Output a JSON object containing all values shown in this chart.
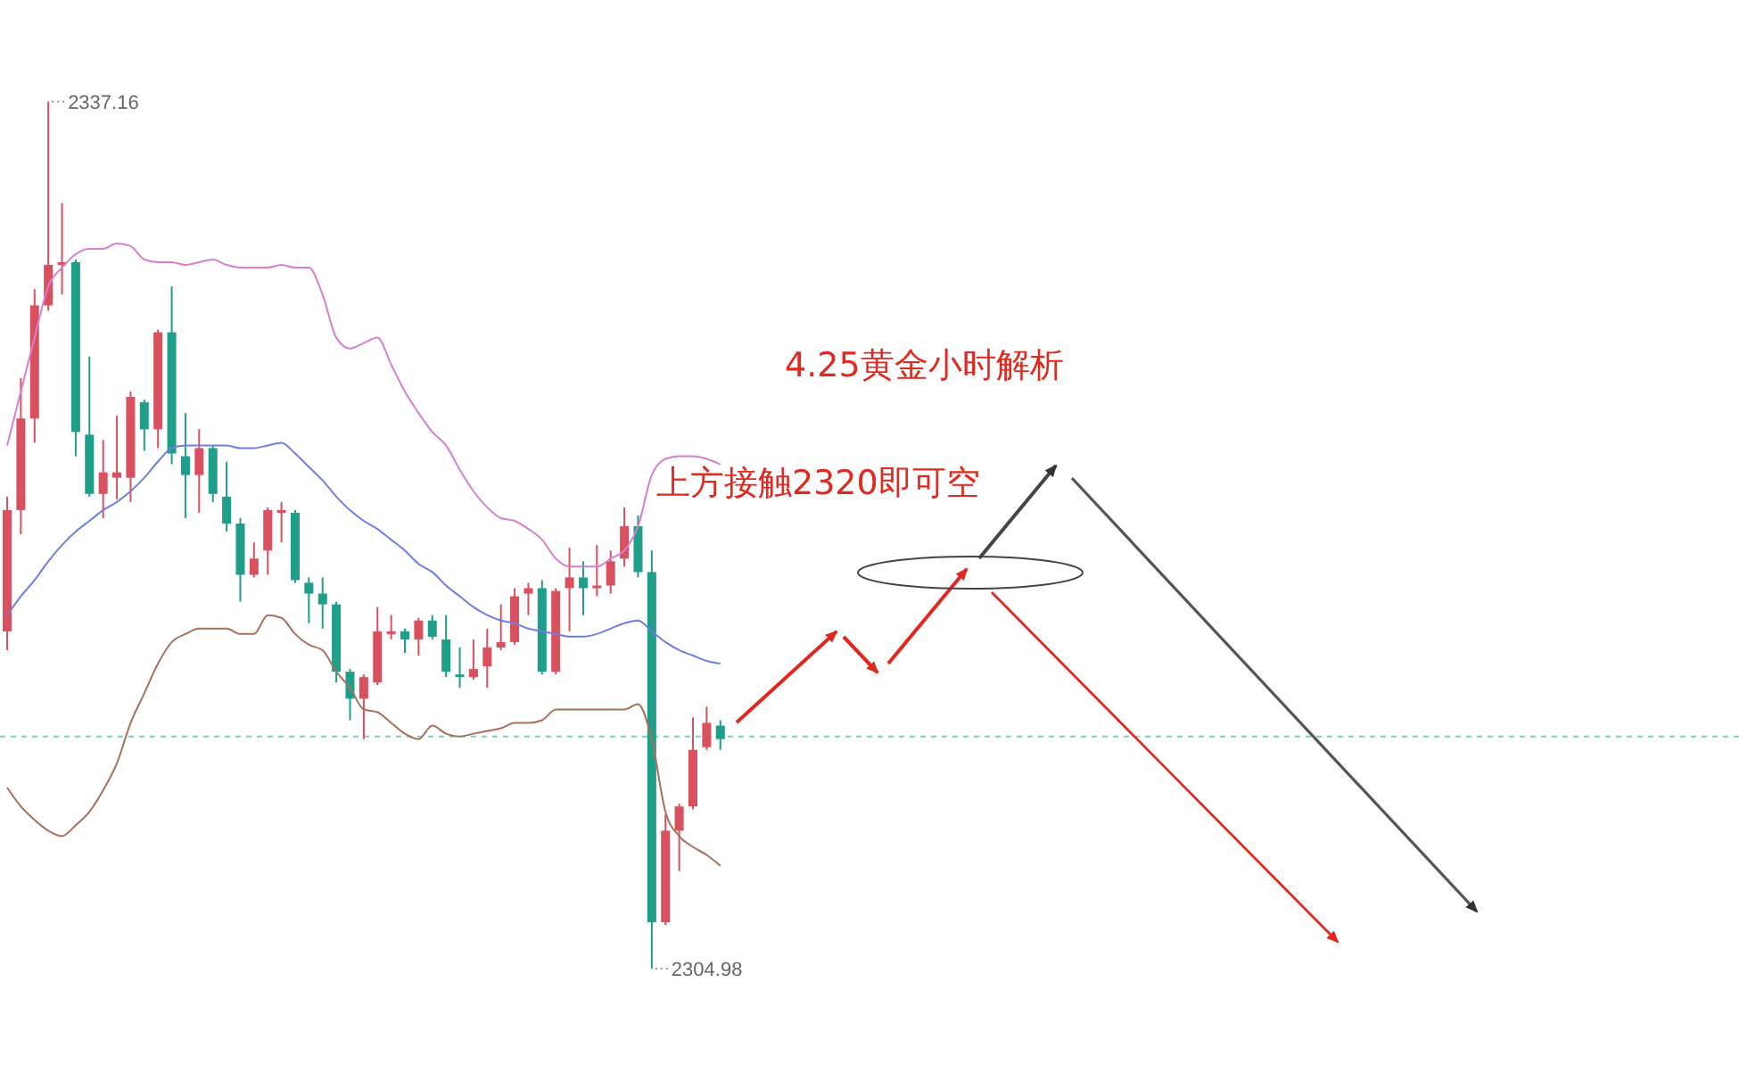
{
  "chart_data": {
    "type": "candlestick",
    "title": "4.25黄金小时解析",
    "categories": [
      null,
      null,
      null,
      null,
      null,
      null,
      null,
      null,
      null,
      null,
      null,
      null,
      null,
      null,
      null,
      null,
      null,
      null,
      null,
      null,
      null,
      null,
      null,
      null,
      null,
      null,
      null,
      null,
      null,
      null,
      null,
      null,
      null,
      null,
      null,
      null,
      null,
      null,
      null,
      null,
      null,
      null,
      null,
      null,
      null,
      null,
      null,
      null,
      null,
      null,
      null,
      null,
      null
    ],
    "ohlc": [
      [
        2317.5,
        2322.5,
        2316.8,
        2322.0
      ],
      [
        2322.0,
        2326.9,
        2321.1,
        2325.4
      ],
      [
        2325.4,
        2330.2,
        2324.5,
        2329.6
      ],
      [
        2329.6,
        2337.16,
        2329.4,
        2331.1
      ],
      [
        2331.1,
        2333.4,
        2330.0,
        2331.2
      ],
      [
        2331.2,
        2331.3,
        2324.0,
        2324.9
      ],
      [
        2324.8,
        2327.7,
        2322.5,
        2322.6
      ],
      [
        2322.6,
        2324.6,
        2321.7,
        2323.4
      ],
      [
        2323.2,
        2325.5,
        2322.4,
        2323.4
      ],
      [
        2323.2,
        2326.4,
        2322.3,
        2326.2
      ],
      [
        2326.0,
        2326.1,
        2324.2,
        2325.0
      ],
      [
        2325.0,
        2328.7,
        2324.3,
        2328.6
      ],
      [
        2328.6,
        2330.3,
        2323.7,
        2324.1
      ],
      [
        2324.0,
        2325.6,
        2321.7,
        2323.3
      ],
      [
        2323.3,
        2325.0,
        2321.9,
        2324.3
      ],
      [
        2324.3,
        2324.4,
        2322.3,
        2322.6
      ],
      [
        2322.5,
        2323.8,
        2321.2,
        2321.5
      ],
      [
        2321.5,
        2321.7,
        2318.6,
        2319.6
      ],
      [
        2319.6,
        2320.8,
        2319.5,
        2320.2
      ],
      [
        2320.5,
        2322.1,
        2319.6,
        2322.0
      ],
      [
        2321.9,
        2322.3,
        2320.8,
        2322.0
      ],
      [
        2321.9,
        2322.0,
        2319.3,
        2319.4
      ],
      [
        2319.3,
        2319.5,
        2317.8,
        2318.9
      ],
      [
        2318.9,
        2319.5,
        2317.6,
        2318.5
      ],
      [
        2318.5,
        2318.6,
        2315.6,
        2316.0
      ],
      [
        2316.0,
        2316.1,
        2314.2,
        2315.0
      ],
      [
        2315.0,
        2315.9,
        2313.5,
        2315.8
      ],
      [
        2315.6,
        2318.4,
        2315.5,
        2317.5
      ],
      [
        2317.4,
        2318.1,
        2317.2,
        2317.5
      ],
      [
        2317.5,
        2317.6,
        2316.7,
        2317.2
      ],
      [
        2317.2,
        2318.0,
        2316.6,
        2317.9
      ],
      [
        2317.9,
        2318.1,
        2317.2,
        2317.3
      ],
      [
        2317.2,
        2318.1,
        2315.8,
        2316.0
      ],
      [
        2315.9,
        2316.9,
        2315.4,
        2315.8
      ],
      [
        2315.8,
        2317.2,
        2315.7,
        2316.1
      ],
      [
        2316.2,
        2317.6,
        2315.4,
        2316.9
      ],
      [
        2316.9,
        2318.5,
        2316.8,
        2317.1
      ],
      [
        2317.1,
        2319.1,
        2317.0,
        2318.8
      ],
      [
        2318.9,
        2319.3,
        2318.1,
        2319.1
      ],
      [
        2319.1,
        2319.4,
        2315.9,
        2316.0
      ],
      [
        2316.0,
        2319.1,
        2315.9,
        2319.0
      ],
      [
        2319.1,
        2320.6,
        2317.5,
        2319.5
      ],
      [
        2319.5,
        2320.1,
        2318.1,
        2319.1
      ],
      [
        2319.1,
        2320.7,
        2318.8,
        2319.2
      ],
      [
        2319.2,
        2320.5,
        2318.9,
        2320.1
      ],
      [
        2320.2,
        2322.1,
        2319.9,
        2321.4
      ],
      [
        2321.4,
        2321.8,
        2319.5,
        2319.7
      ],
      [
        2319.7,
        2320.5,
        2304.98,
        2306.7
      ],
      [
        2306.7,
        2310.7,
        2306.6,
        2310.1
      ],
      [
        2310.1,
        2311.1,
        2308.6,
        2311.0
      ],
      [
        2311.0,
        2314.3,
        2310.9,
        2313.1
      ],
      [
        2313.2,
        2314.7,
        2313.1,
        2314.1
      ],
      [
        2314.0,
        2314.2,
        2313.1,
        2313.5
      ]
    ],
    "colors": [
      "#d9505e",
      "#d9505e",
      "#d9505e",
      "#d9505e",
      "#d9505e",
      "#1f9e89",
      "#1f9e89",
      "#d9505e",
      "#d9505e",
      "#d9505e",
      "#1f9e89",
      "#d9505e",
      "#1f9e89",
      "#1f9e89",
      "#d9505e",
      "#1f9e89",
      "#1f9e89",
      "#1f9e89",
      "#d9505e",
      "#d9505e",
      "#d9505e",
      "#1f9e89",
      "#1f9e89",
      "#1f9e89",
      "#1f9e89",
      "#1f9e89",
      "#d9505e",
      "#d9505e",
      "#d9505e",
      "#1f9e89",
      "#d9505e",
      "#1f9e89",
      "#1f9e89",
      "#1f9e89",
      "#d9505e",
      "#d9505e",
      "#d9505e",
      "#d9505e",
      "#d9505e",
      "#1f9e89",
      "#d9505e",
      "#d9505e",
      "#1f9e89",
      "#d9505e",
      "#d9505e",
      "#d9505e",
      "#1f9e89",
      "#1f9e89",
      "#d9505e",
      "#d9505e",
      "#d9505e",
      "#d9505e",
      "#1f9e89"
    ],
    "series": [
      {
        "type": "line",
        "color": "#d67fd0",
        "values": [
          2324.4,
          2326.4,
          2328.4,
          2330.3,
          2331.0,
          2331.5,
          2331.7,
          2331.7,
          2331.9,
          2331.8,
          2331.3,
          2331.2,
          2331.2,
          2331.1,
          2331.2,
          2331.3,
          2331.1,
          2331.0,
          2331.0,
          2331.0,
          2331.1,
          2331.0,
          2331.0,
          2330.0,
          2328.4,
          2328.0,
          2328.2,
          2328.4,
          2327.4,
          2326.4,
          2325.6,
          2324.9,
          2324.4,
          2323.5,
          2322.7,
          2322.1,
          2321.7,
          2321.6,
          2321.3,
          2320.9,
          2320.2,
          2319.9,
          2319.9,
          2319.9,
          2320.2,
          2320.5,
          2321.4,
          2323.3,
          2323.9,
          2324.0,
          2324.0,
          2323.9,
          2323.7
        ]
      },
      {
        "type": "line",
        "color": "#6f7fe0",
        "values": [
          2318.1,
          2318.8,
          2319.4,
          2320.1,
          2320.7,
          2321.2,
          2321.6,
          2322.0,
          2322.3,
          2322.7,
          2323.2,
          2323.8,
          2324.3,
          2324.4,
          2324.4,
          2324.4,
          2324.4,
          2324.3,
          2324.3,
          2324.4,
          2324.5,
          2324.1,
          2323.6,
          2323.1,
          2322.5,
          2322.0,
          2321.6,
          2321.3,
          2320.9,
          2320.5,
          2320.0,
          2319.7,
          2319.2,
          2318.8,
          2318.4,
          2318.1,
          2317.9,
          2317.8,
          2317.6,
          2317.5,
          2317.4,
          2317.3,
          2317.3,
          2317.4,
          2317.6,
          2317.8,
          2317.9,
          2317.5,
          2317.1,
          2316.8,
          2316.6,
          2316.4,
          2316.3
        ]
      },
      {
        "type": "line",
        "color": "#a8705a",
        "values": [
          2311.7,
          2311.0,
          2310.5,
          2310.1,
          2309.9,
          2310.3,
          2310.8,
          2311.6,
          2312.6,
          2314.1,
          2315.2,
          2316.3,
          2317.1,
          2317.4,
          2317.6,
          2317.6,
          2317.6,
          2317.4,
          2317.4,
          2318.1,
          2318.0,
          2317.4,
          2317.0,
          2316.8,
          2316.0,
          2315.4,
          2314.6,
          2314.5,
          2314.1,
          2313.7,
          2313.5,
          2314.0,
          2313.7,
          2313.6,
          2313.7,
          2313.8,
          2313.9,
          2314.1,
          2314.1,
          2314.2,
          2314.6,
          2314.6,
          2314.6,
          2314.6,
          2314.6,
          2314.6,
          2314.8,
          2313.5,
          2310.8,
          2309.9,
          2309.5,
          2309.2,
          2308.8
        ]
      }
    ],
    "ref_lines": [
      {
        "axis": "y",
        "value": 2313.6,
        "color": "#7fcfc0",
        "line_style": "dashed"
      }
    ],
    "annotations": [
      "上方接触2320即可空",
      "2337.16",
      "2304.98"
    ]
  }
}
